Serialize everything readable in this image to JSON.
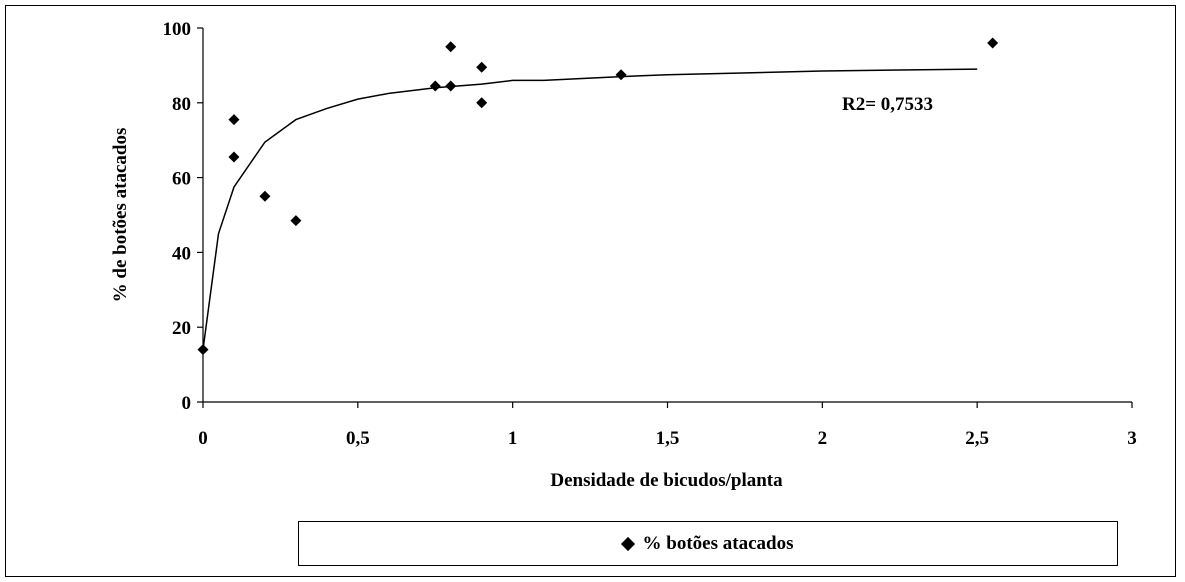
{
  "chart_data": {
    "type": "scatter",
    "title": "",
    "xlabel": "Densidade de bicudos/planta",
    "ylabel": "% de botões atacados",
    "xlim": [
      0,
      3
    ],
    "ylim": [
      0,
      100
    ],
    "x_ticks": [
      "0",
      "0,5",
      "1",
      "1,5",
      "2",
      "2,5",
      "3"
    ],
    "x_tick_values": [
      0,
      0.5,
      1,
      1.5,
      2,
      2.5,
      3
    ],
    "y_ticks": [
      "0",
      "20",
      "40",
      "60",
      "80",
      "100"
    ],
    "y_tick_values": [
      0,
      20,
      40,
      60,
      80,
      100
    ],
    "grid": false,
    "legend_position": "bottom",
    "series": [
      {
        "name": "% botões atacados",
        "marker": "diamond",
        "color": "#000000",
        "points": [
          [
            0,
            14
          ],
          [
            0.1,
            75.5
          ],
          [
            0.1,
            65.5
          ],
          [
            0.2,
            55
          ],
          [
            0.3,
            48.5
          ],
          [
            0.75,
            84.5
          ],
          [
            0.8,
            95
          ],
          [
            0.8,
            84.5
          ],
          [
            0.9,
            89.5
          ],
          [
            0.9,
            80
          ],
          [
            1.35,
            87.5
          ],
          [
            2.55,
            96
          ]
        ]
      }
    ],
    "trendline": {
      "color": "#000000",
      "points": [
        [
          0,
          14
        ],
        [
          0.05,
          45
        ],
        [
          0.1,
          57.5
        ],
        [
          0.2,
          69.5
        ],
        [
          0.3,
          75.5
        ],
        [
          0.4,
          78.5
        ],
        [
          0.5,
          81
        ],
        [
          0.6,
          82.5
        ],
        [
          0.75,
          84
        ],
        [
          0.9,
          85
        ],
        [
          1,
          86
        ],
        [
          1.1,
          86
        ],
        [
          1.35,
          87
        ],
        [
          1.5,
          87.5
        ],
        [
          2,
          88.5
        ],
        [
          2.5,
          89
        ]
      ]
    },
    "annotation": "R2= 0,7533"
  }
}
